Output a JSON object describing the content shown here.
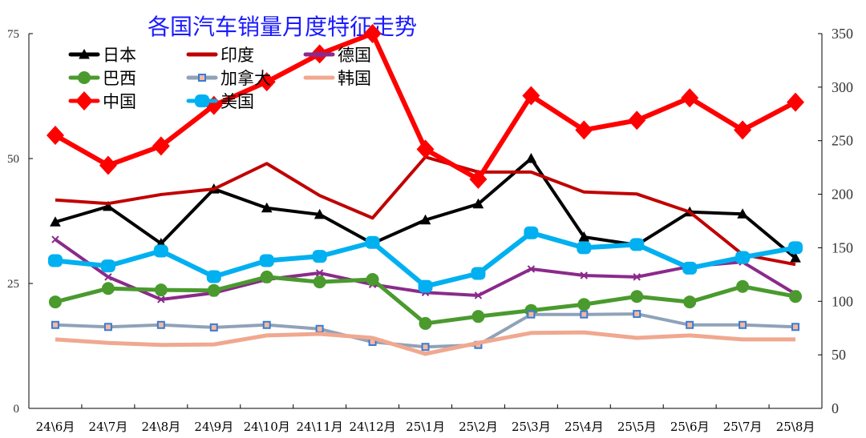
{
  "chart_data": {
    "type": "line",
    "title": "各国汽车销量月度特征走势",
    "categories": [
      "24\\6月",
      "24\\7月",
      "24\\8月",
      "24\\9月",
      "24\\10月",
      "24\\11月",
      "24\\12月",
      "25\\1月",
      "25\\2月",
      "25\\3月",
      "25\\4月",
      "25\\5月",
      "25\\6月",
      "25\\7月",
      "25\\8月"
    ],
    "left_axis": {
      "ylim": [
        0,
        75
      ],
      "ticks": [
        0,
        25,
        50,
        75
      ]
    },
    "right_axis": {
      "ylim": [
        0,
        350
      ],
      "ticks": [
        0,
        50,
        100,
        150,
        200,
        250,
        300,
        350
      ]
    },
    "grid": false,
    "legend_position": "top-left",
    "series": [
      {
        "name": "日本",
        "axis": "left",
        "color": "#000000",
        "marker": "triangle",
        "values": [
          37.3,
          40.4,
          33.0,
          43.9,
          40.1,
          38.8,
          33.0,
          37.7,
          40.9,
          50.0,
          34.3,
          32.7,
          39.3,
          38.9,
          30.1
        ]
      },
      {
        "name": "印度",
        "axis": "left",
        "color": "#c00000",
        "marker": "dash",
        "values": [
          41.7,
          41.0,
          42.8,
          43.9,
          49.0,
          42.6,
          38.1,
          50.3,
          47.3,
          47.3,
          43.3,
          42.9,
          39.3,
          30.8,
          28.8
        ]
      },
      {
        "name": "德国",
        "axis": "left",
        "color": "#8b2a8b",
        "marker": "x",
        "values": [
          33.8,
          26.3,
          21.8,
          23.1,
          25.8,
          27.1,
          24.8,
          23.2,
          22.6,
          27.9,
          26.6,
          26.3,
          28.4,
          29.3,
          22.9
        ]
      },
      {
        "name": "巴西",
        "axis": "left",
        "color": "#4a9a2e",
        "marker": "circle",
        "values": [
          21.3,
          24.0,
          23.7,
          23.6,
          26.3,
          25.3,
          25.8,
          17.0,
          18.4,
          19.6,
          20.8,
          22.4,
          21.3,
          24.4,
          22.4
        ]
      },
      {
        "name": "加拿大",
        "axis": "left",
        "color": "#8fa2b8",
        "marker": "square",
        "values": [
          16.7,
          16.3,
          16.7,
          16.2,
          16.7,
          15.9,
          13.3,
          12.3,
          12.7,
          18.8,
          18.8,
          18.9,
          16.7,
          16.7,
          16.3
        ]
      },
      {
        "name": "韩国",
        "axis": "left",
        "color": "#f0a890",
        "marker": "none",
        "values": [
          13.8,
          13.1,
          12.7,
          12.8,
          14.6,
          14.9,
          14.1,
          10.9,
          13.1,
          15.1,
          15.2,
          14.1,
          14.6,
          13.8,
          13.8
        ]
      },
      {
        "name": "中国",
        "axis": "right",
        "color": "#ff0000",
        "marker": "diamond",
        "values": [
          255,
          227,
          245,
          283,
          305,
          331,
          350,
          242,
          214,
          292,
          260,
          269,
          290,
          260,
          286
        ]
      },
      {
        "name": "美国",
        "axis": "right",
        "color": "#00b0f0",
        "marker": "bigcircle",
        "values": [
          138,
          133,
          147,
          123,
          138,
          142,
          155,
          114,
          126,
          164,
          150,
          153,
          131,
          141,
          150
        ]
      }
    ]
  }
}
